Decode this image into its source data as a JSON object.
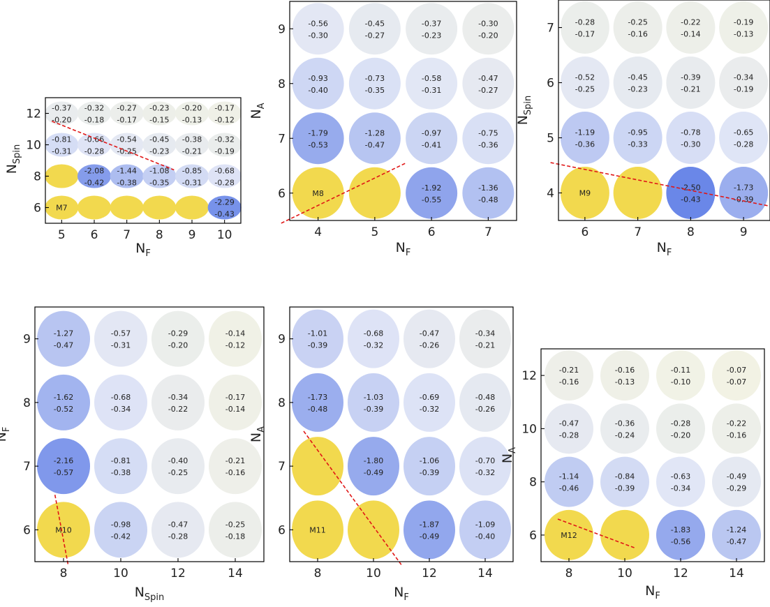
{
  "chart_data": [
    {
      "type": "heatmap",
      "xlabel": "N_F",
      "ylabel": "N_Spin",
      "x": [
        5,
        6,
        7,
        8,
        9,
        10
      ],
      "y": [
        6,
        8,
        10,
        12
      ],
      "xticks": [
        "5",
        "6",
        "7",
        "8",
        "9",
        "10"
      ],
      "yticks": [
        "6",
        "8",
        "10",
        "12"
      ],
      "xlim": [
        4.5,
        10.5
      ],
      "ylim": [
        5,
        13
      ],
      "cells": [
        [
          [
            -0.37,
            -0.2
          ],
          [
            -0.32,
            -0.18
          ],
          [
            -0.27,
            -0.17
          ],
          [
            -0.23,
            -0.15
          ],
          [
            -0.2,
            -0.13
          ],
          [
            -0.17,
            -0.12
          ]
        ],
        [
          [
            -0.81,
            -0.31
          ],
          [
            -0.66,
            -0.28
          ],
          [
            -0.54,
            -0.25
          ],
          [
            -0.45,
            -0.23
          ],
          [
            -0.38,
            -0.21
          ],
          [
            -0.32,
            -0.19
          ]
        ],
        [
          null,
          [
            -2.08,
            -0.42
          ],
          [
            -1.44,
            -0.38
          ],
          [
            -1.08,
            -0.35
          ],
          [
            -0.85,
            -0.31
          ],
          [
            -0.68,
            -0.28
          ]
        ],
        [
          null,
          null,
          null,
          null,
          null,
          [
            -2.29,
            -0.43
          ]
        ]
      ],
      "model_label": "M7"
    },
    {
      "type": "heatmap",
      "xlabel": "N_F",
      "ylabel": "N_A",
      "x": [
        4,
        5,
        6,
        7
      ],
      "y": [
        6,
        7,
        8,
        9
      ],
      "xticks": [
        "4",
        "5",
        "6",
        "7"
      ],
      "yticks": [
        "6",
        "7",
        "8",
        "9"
      ],
      "xlim": [
        3.5,
        7.5
      ],
      "ylim": [
        5.5,
        9.5
      ],
      "cells": [
        [
          [
            -0.56,
            -0.3
          ],
          [
            -0.45,
            -0.27
          ],
          [
            -0.37,
            -0.23
          ],
          [
            -0.3,
            -0.2
          ]
        ],
        [
          [
            -0.93,
            -0.4
          ],
          [
            -0.73,
            -0.35
          ],
          [
            -0.58,
            -0.31
          ],
          [
            -0.47,
            -0.27
          ]
        ],
        [
          [
            -1.79,
            -0.53
          ],
          [
            -1.28,
            -0.47
          ],
          [
            -0.97,
            -0.41
          ],
          [
            -0.75,
            -0.36
          ]
        ],
        [
          null,
          null,
          [
            -1.92,
            -0.55
          ],
          [
            -1.36,
            -0.48
          ]
        ]
      ],
      "model_label": "M8"
    },
    {
      "type": "heatmap",
      "xlabel": "N_F",
      "ylabel": "N_Spin",
      "x": [
        6,
        7,
        8,
        9
      ],
      "y": [
        4,
        5,
        6,
        7
      ],
      "xticks": [
        "6",
        "7",
        "8",
        "9"
      ],
      "yticks": [
        "4",
        "5",
        "6",
        "7"
      ],
      "xlim": [
        5.5,
        9.5
      ],
      "ylim": [
        3.5,
        7.5
      ],
      "cells": [
        [
          [
            -0.28,
            -0.17
          ],
          [
            -0.25,
            -0.16
          ],
          [
            -0.22,
            -0.14
          ],
          [
            -0.19,
            -0.13
          ]
        ],
        [
          [
            -0.52,
            -0.25
          ],
          [
            -0.45,
            -0.23
          ],
          [
            -0.39,
            -0.21
          ],
          [
            -0.34,
            -0.19
          ]
        ],
        [
          [
            -1.19,
            -0.36
          ],
          [
            -0.95,
            -0.33
          ],
          [
            -0.78,
            -0.3
          ],
          [
            -0.65,
            -0.28
          ]
        ],
        [
          null,
          null,
          [
            -2.5,
            -0.43
          ],
          [
            -1.73,
            -0.39
          ]
        ]
      ],
      "model_label": "M9"
    },
    {
      "type": "heatmap",
      "xlabel": "N_Spin",
      "ylabel": "N_F",
      "x": [
        8,
        10,
        12,
        14
      ],
      "y": [
        6,
        7,
        8,
        9
      ],
      "xticks": [
        "8",
        "10",
        "12",
        "14"
      ],
      "yticks": [
        "6",
        "7",
        "8",
        "9"
      ],
      "xlim": [
        7,
        15
      ],
      "ylim": [
        5.5,
        9.5
      ],
      "cells": [
        [
          [
            -1.27,
            -0.47
          ],
          [
            -0.57,
            -0.31
          ],
          [
            -0.29,
            -0.2
          ],
          [
            -0.14,
            -0.12
          ]
        ],
        [
          [
            -1.62,
            -0.52
          ],
          [
            -0.68,
            -0.34
          ],
          [
            -0.34,
            -0.22
          ],
          [
            -0.17,
            -0.14
          ]
        ],
        [
          [
            -2.16,
            -0.57
          ],
          [
            -0.81,
            -0.38
          ],
          [
            -0.4,
            -0.25
          ],
          [
            -0.21,
            -0.16
          ]
        ],
        [
          null,
          [
            -0.98,
            -0.42
          ],
          [
            -0.47,
            -0.28
          ],
          [
            -0.25,
            -0.18
          ]
        ]
      ],
      "model_label": "M10"
    },
    {
      "type": "heatmap",
      "xlabel": "N_F",
      "ylabel": "N_A",
      "x": [
        8,
        10,
        12,
        14
      ],
      "y": [
        6,
        7,
        8,
        9
      ],
      "xticks": [
        "8",
        "10",
        "12",
        "14"
      ],
      "yticks": [
        "6",
        "7",
        "8",
        "9"
      ],
      "xlim": [
        7,
        15
      ],
      "ylim": [
        5.5,
        9.5
      ],
      "cells": [
        [
          [
            -1.01,
            -0.39
          ],
          [
            -0.68,
            -0.32
          ],
          [
            -0.47,
            -0.26
          ],
          [
            -0.34,
            -0.21
          ]
        ],
        [
          [
            -1.73,
            -0.48
          ],
          [
            -1.03,
            -0.39
          ],
          [
            -0.69,
            -0.32
          ],
          [
            -0.48,
            -0.26
          ]
        ],
        [
          null,
          [
            -1.8,
            -0.49
          ],
          [
            -1.06,
            -0.39
          ],
          [
            -0.7,
            -0.32
          ]
        ],
        [
          null,
          null,
          [
            -1.87,
            -0.49
          ],
          [
            -1.09,
            -0.4
          ]
        ]
      ],
      "model_label": "M11"
    },
    {
      "type": "heatmap",
      "xlabel": "N_F",
      "ylabel": "N_A",
      "x": [
        8,
        10,
        12,
        14
      ],
      "y": [
        6,
        8,
        10,
        12
      ],
      "xticks": [
        "8",
        "10",
        "12",
        "14"
      ],
      "yticks": [
        "6",
        "8",
        "10",
        "12"
      ],
      "xlim": [
        7,
        15
      ],
      "ylim": [
        5,
        13
      ],
      "cells": [
        [
          [
            -0.21,
            -0.16
          ],
          [
            -0.16,
            -0.13
          ],
          [
            -0.11,
            -0.1
          ],
          [
            -0.07,
            -0.07
          ]
        ],
        [
          [
            -0.47,
            -0.28
          ],
          [
            -0.36,
            -0.24
          ],
          [
            -0.28,
            -0.2
          ],
          [
            -0.22,
            -0.16
          ]
        ],
        [
          [
            -1.14,
            -0.46
          ],
          [
            -0.84,
            -0.39
          ],
          [
            -0.63,
            -0.34
          ],
          [
            -0.49,
            -0.29
          ]
        ],
        [
          null,
          null,
          [
            -1.83,
            -0.56
          ],
          [
            -1.24,
            -0.47
          ]
        ]
      ],
      "model_label": "M12"
    }
  ]
}
